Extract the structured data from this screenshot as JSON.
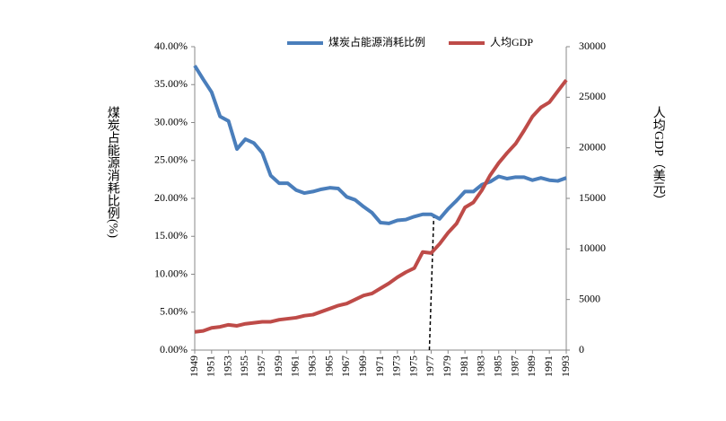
{
  "chart_data": {
    "type": "line",
    "x": [
      1949,
      1950,
      1951,
      1952,
      1953,
      1954,
      1955,
      1956,
      1957,
      1958,
      1959,
      1960,
      1961,
      1962,
      1963,
      1964,
      1965,
      1966,
      1967,
      1968,
      1969,
      1970,
      1971,
      1972,
      1973,
      1974,
      1975,
      1976,
      1977,
      1978,
      1979,
      1980,
      1981,
      1982,
      1983,
      1984,
      1985,
      1986,
      1987,
      1988,
      1989,
      1990,
      1991,
      1992,
      1993
    ],
    "xlim": [
      1949,
      1993
    ],
    "xticks": [
      1949,
      1951,
      1953,
      1955,
      1957,
      1959,
      1961,
      1963,
      1965,
      1967,
      1969,
      1971,
      1973,
      1975,
      1977,
      1979,
      1981,
      1983,
      1985,
      1987,
      1989,
      1991,
      1993
    ],
    "ylabel": "煤炭占能源消耗比例(%)",
    "y2label": "人均GDP（美元）",
    "ylim": [
      0,
      40
    ],
    "yticks": [
      {
        "value": 0,
        "label": "0.00%"
      },
      {
        "value": 5,
        "label": "5.00%"
      },
      {
        "value": 10,
        "label": "10.00%"
      },
      {
        "value": 15,
        "label": "15.00%"
      },
      {
        "value": 20,
        "label": "20.00%"
      },
      {
        "value": 25,
        "label": "25.00%"
      },
      {
        "value": 30,
        "label": "30.00%"
      },
      {
        "value": 35,
        "label": "35.00%"
      },
      {
        "value": 40,
        "label": "40.00%"
      }
    ],
    "y2lim": [
      0,
      30000
    ],
    "y2ticks": [
      0,
      5000,
      10000,
      15000,
      20000,
      25000,
      30000
    ],
    "series": [
      {
        "name": "煤炭占能源消耗比例",
        "color": "#4a7ebb",
        "values": [
          37.5,
          35.7,
          34.0,
          30.8,
          30.2,
          26.5,
          27.8,
          27.3,
          26.0,
          23.0,
          22.0,
          22.0,
          21.1,
          20.7,
          20.9,
          21.2,
          21.4,
          21.3,
          20.2,
          19.8,
          18.9,
          18.1,
          16.8,
          16.7,
          17.1,
          17.2,
          17.6,
          17.9,
          17.9,
          17.3,
          18.6,
          19.7,
          20.9,
          20.9,
          21.8,
          22.2,
          22.9,
          22.6,
          22.8,
          22.8,
          22.4,
          22.7,
          22.4,
          22.3,
          22.7
        ]
      },
      {
        "name": "人均GDP",
        "color": "#be4b48",
        "axis": "y2",
        "values": [
          1800,
          1900,
          2200,
          2300,
          2500,
          2400,
          2600,
          2700,
          2800,
          2800,
          3000,
          3100,
          3200,
          3400,
          3500,
          3800,
          4100,
          4400,
          4600,
          5000,
          5400,
          5600,
          6100,
          6600,
          7200,
          7700,
          8100,
          9700,
          9600,
          10500,
          11600,
          12500,
          14100,
          14600,
          15800,
          17300,
          18500,
          19500,
          20400,
          21700,
          23100,
          24000,
          24500,
          25600,
          26700
        ]
      }
    ]
  }
}
